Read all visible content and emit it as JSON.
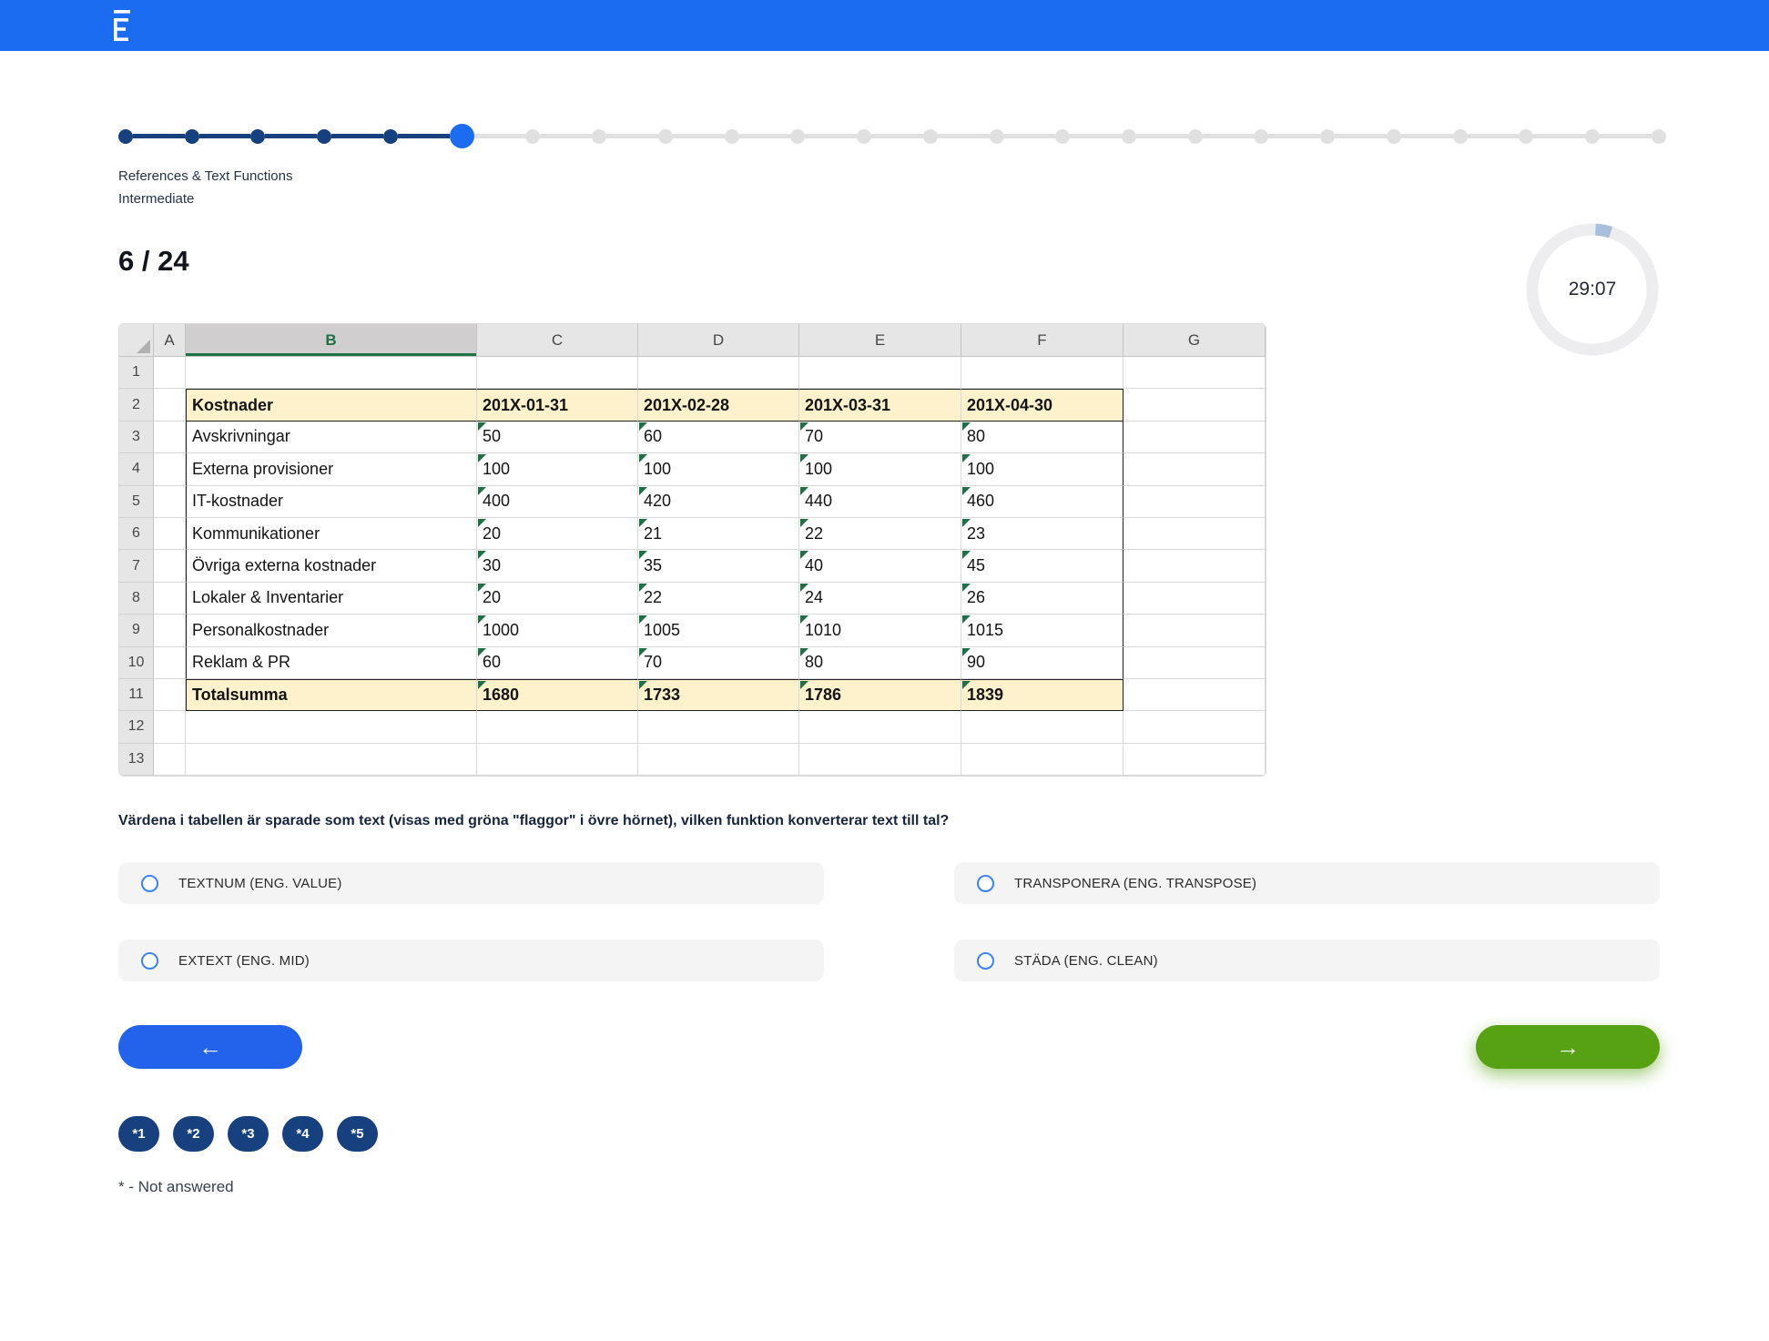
{
  "app": {
    "logo_name": "app-logo-e-mark"
  },
  "theme": {
    "topbar_blue": "#1b6cf1",
    "navy": "#17407f",
    "current_blue": "#1b6cf1",
    "inactive_gray": "#e0e0e0",
    "back_button_blue": "#2363eb",
    "next_button_green": "#57a213",
    "option_bg": "#f4f4f5",
    "radio_blue": "#3b82f6",
    "sheet_header_fill": "#fdf2cc",
    "flag_green": "#1e7145",
    "timer_ring": "#ededf0",
    "timer_tick": "#a9c0dc"
  },
  "stepper": {
    "total": 24,
    "completed": 5,
    "current": 6
  },
  "quiz_meta": {
    "category": "References & Text Functions",
    "level": "Intermediate",
    "counter": "6 / 24"
  },
  "timer": {
    "remaining": "29:07"
  },
  "spreadsheet": {
    "column_headers": [
      "A",
      "B",
      "C",
      "D",
      "E",
      "F",
      "G"
    ],
    "selected_column": "B",
    "visible_rows": 13,
    "table": {
      "header": {
        "label": "Kostnader",
        "columns": [
          "201X-01-31",
          "201X-02-28",
          "201X-03-31",
          "201X-04-30"
        ]
      },
      "rows": [
        {
          "label": "Avskrivningar",
          "values": [
            "50",
            "60",
            "70",
            "80"
          ]
        },
        {
          "label": "Externa provisioner",
          "values": [
            "100",
            "100",
            "100",
            "100"
          ]
        },
        {
          "label": "IT-kostnader",
          "values": [
            "400",
            "420",
            "440",
            "460"
          ]
        },
        {
          "label": "Kommunikationer",
          "values": [
            "20",
            "21",
            "22",
            "23"
          ]
        },
        {
          "label": "Övriga externa kostnader",
          "values": [
            "30",
            "35",
            "40",
            "45"
          ]
        },
        {
          "label": "Lokaler & Inventarier",
          "values": [
            "20",
            "22",
            "24",
            "26"
          ]
        },
        {
          "label": "Personalkostnader",
          "values": [
            "1000",
            "1005",
            "1010",
            "1015"
          ]
        },
        {
          "label": "Reklam & PR",
          "values": [
            "60",
            "70",
            "80",
            "90"
          ]
        }
      ],
      "total": {
        "label": "Totalsumma",
        "values": [
          "1680",
          "1733",
          "1786",
          "1839"
        ]
      }
    }
  },
  "question": {
    "text": "Värdena i tabellen är sparade som text (visas med gröna \"flaggor\" i övre hörnet), vilken funktion konverterar text till tal?",
    "options": [
      {
        "label": "TEXTNUM (ENG. VALUE)"
      },
      {
        "label": "TRANSPONERA (ENG. TRANSPOSE)"
      },
      {
        "label": "EXTEXT (ENG. MID)"
      },
      {
        "label": "STÄDA (ENG. CLEAN)"
      }
    ]
  },
  "navigation": {
    "back_symbol": "←",
    "next_symbol": "→"
  },
  "question_pills": {
    "items": [
      "*1",
      "*2",
      "*3",
      "*4",
      "*5"
    ],
    "note": "* - Not answered"
  }
}
